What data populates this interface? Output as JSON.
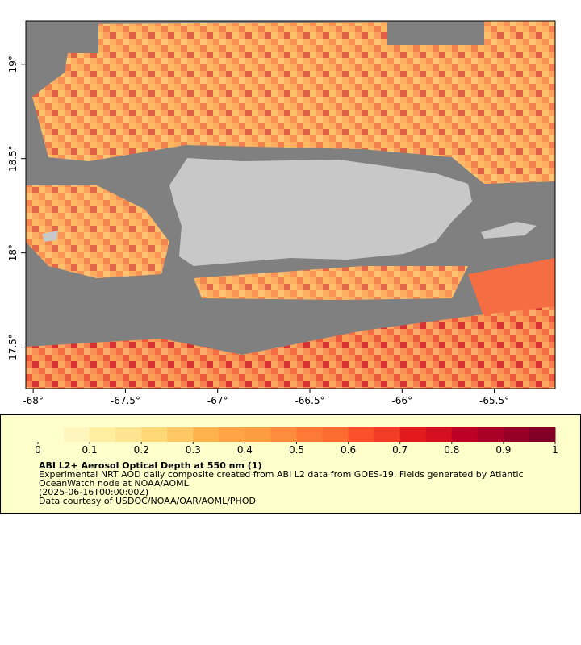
{
  "map": {
    "xlim": [
      -68.04,
      -65.17
    ],
    "ylim": [
      17.28,
      19.23
    ],
    "xticks": [
      {
        "value": -68,
        "label": "-68°"
      },
      {
        "value": -67.5,
        "label": "-67.5°"
      },
      {
        "value": -67,
        "label": "-67°"
      },
      {
        "value": -66.5,
        "label": "-66.5°"
      },
      {
        "value": -66,
        "label": "-66°"
      },
      {
        "value": -65.5,
        "label": "-65.5°"
      }
    ],
    "yticks": [
      {
        "value": 19,
        "label": "19°"
      },
      {
        "value": 18.5,
        "label": "18.5°"
      },
      {
        "value": 18,
        "label": "18°"
      },
      {
        "value": 17.5,
        "label": "17.5°"
      }
    ]
  },
  "colorbar": {
    "lim": [
      0,
      1
    ],
    "ticks": [
      0,
      0.1,
      0.2,
      0.3,
      0.4,
      0.5,
      0.6,
      0.7,
      0.8,
      0.9,
      1
    ],
    "colors": [
      "#ffffcc",
      "#fff6bd",
      "#ffeda0",
      "#fee391",
      "#fed976",
      "#fec965",
      "#feb24c",
      "#fea446",
      "#fd9c41",
      "#fd8d3c",
      "#fc7a36",
      "#fc6b30",
      "#fc4e2a",
      "#f33d26",
      "#e31a1c",
      "#d51020",
      "#bd0026",
      "#a80026",
      "#950026",
      "#800026"
    ]
  },
  "legend": {
    "title": "ABI L2+ Aerosol Optical Depth at 550 nm (1)",
    "lines": [
      "Experimental NRT AOD daily composite created from ABI L2 data from GOES-19. Fields generated by Atlantic",
      "OceanWatch node at NOAA/AOML",
      "(2025-06-16T00:00:00Z)",
      "Data courtesy of USDOC/NOAA/OAR/AOML/PHOD"
    ]
  }
}
